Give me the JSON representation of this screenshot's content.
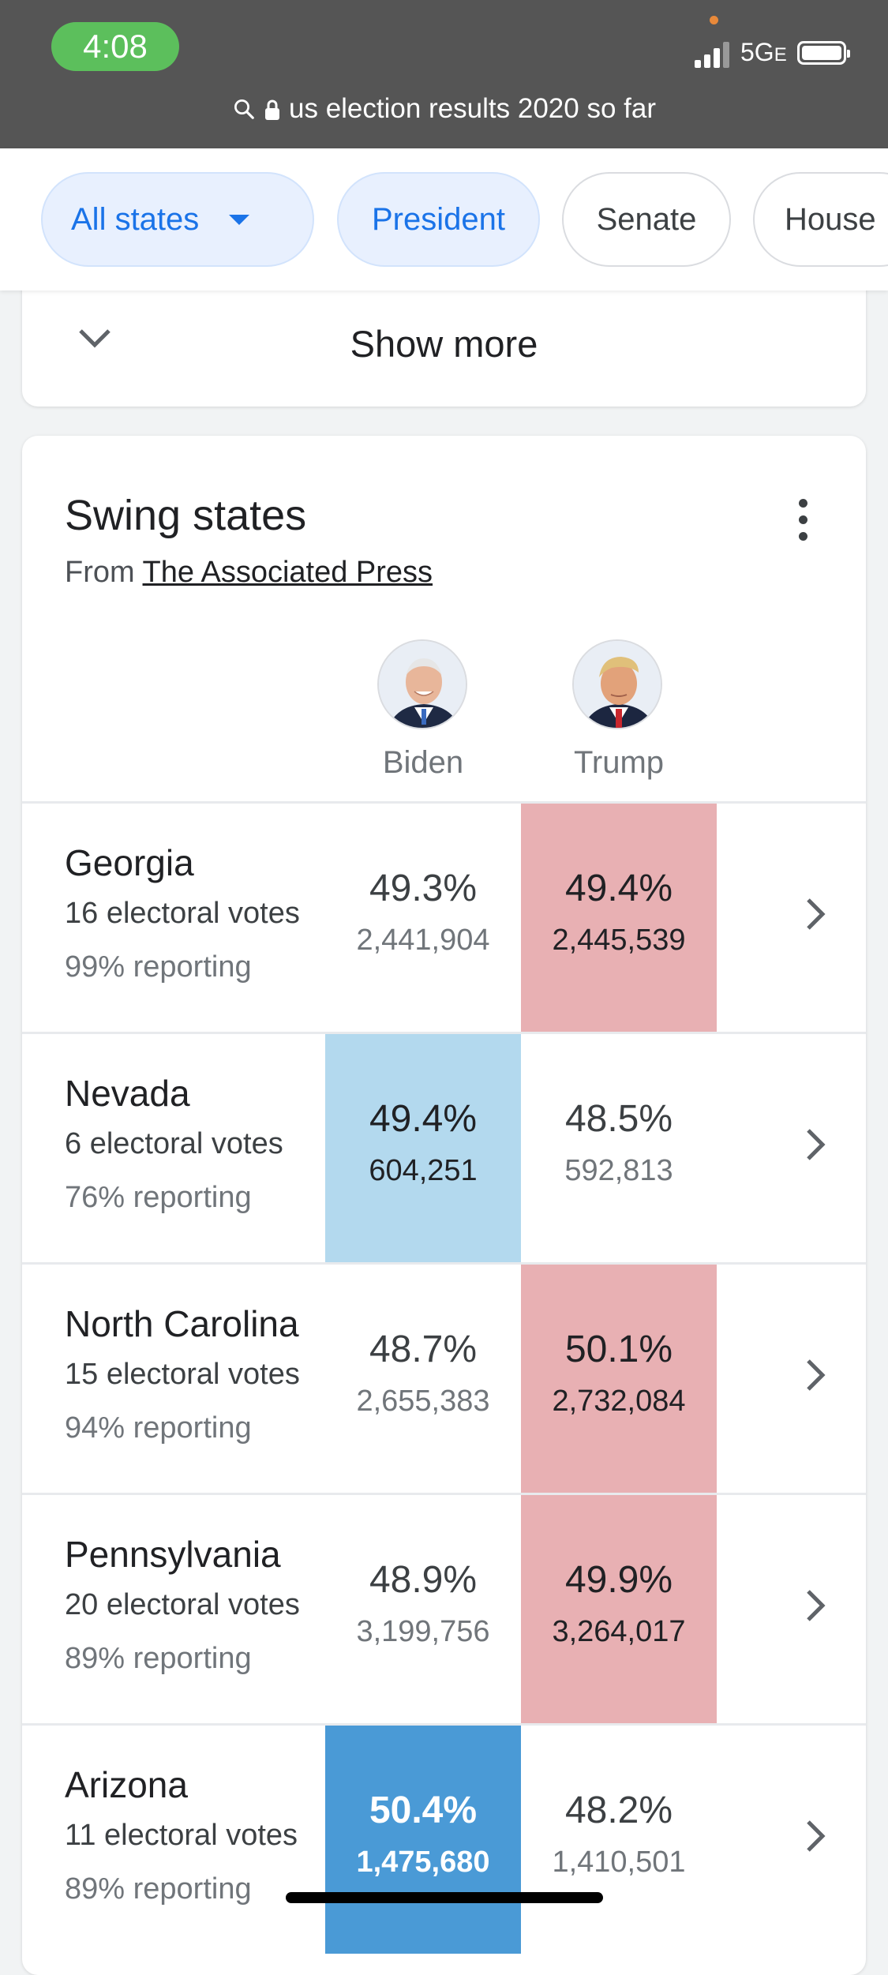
{
  "status_bar": {
    "time": "4:08",
    "network": "5G",
    "network_suffix": "E"
  },
  "url_bar": {
    "text": "us election results 2020 so far"
  },
  "filters": [
    {
      "label": "All states",
      "selected": true,
      "has_dropdown": true
    },
    {
      "label": "President",
      "selected": true
    },
    {
      "label": "Senate",
      "selected": false
    },
    {
      "label": "House",
      "selected": false
    }
  ],
  "show_more": {
    "label": "Show more"
  },
  "swing": {
    "title": "Swing states",
    "source_prefix": "From",
    "source_link": "The Associated Press",
    "candidates": [
      {
        "name": "Biden"
      },
      {
        "name": "Trump"
      }
    ],
    "colors": {
      "trump_lead": "#e8b0b3",
      "biden_lead": "#b3d9ee",
      "biden_called": "#4a9ad6"
    },
    "rows": [
      {
        "state": "Georgia",
        "electoral_votes": "16 electoral votes",
        "reporting": "99% reporting",
        "biden": {
          "pct": "49.3%",
          "votes": "2,441,904"
        },
        "trump": {
          "pct": "49.4%",
          "votes": "2,445,539"
        }
      },
      {
        "state": "Nevada",
        "electoral_votes": "6 electoral votes",
        "reporting": "76% reporting",
        "biden": {
          "pct": "49.4%",
          "votes": "604,251"
        },
        "trump": {
          "pct": "48.5%",
          "votes": "592,813"
        }
      },
      {
        "state": "North Carolina",
        "electoral_votes": "15 electoral votes",
        "reporting": "94% reporting",
        "biden": {
          "pct": "48.7%",
          "votes": "2,655,383"
        },
        "trump": {
          "pct": "50.1%",
          "votes": "2,732,084"
        }
      },
      {
        "state": "Pennsylvania",
        "electoral_votes": "20 electoral votes",
        "reporting": "89% reporting",
        "biden": {
          "pct": "48.9%",
          "votes": "3,199,756"
        },
        "trump": {
          "pct": "49.9%",
          "votes": "3,264,017"
        }
      },
      {
        "state": "Arizona",
        "electoral_votes": "11 electoral votes",
        "reporting": "89% reporting",
        "biden": {
          "pct": "50.4%",
          "votes": "1,475,680"
        },
        "trump": {
          "pct": "48.2%",
          "votes": "1,410,501"
        }
      }
    ]
  }
}
